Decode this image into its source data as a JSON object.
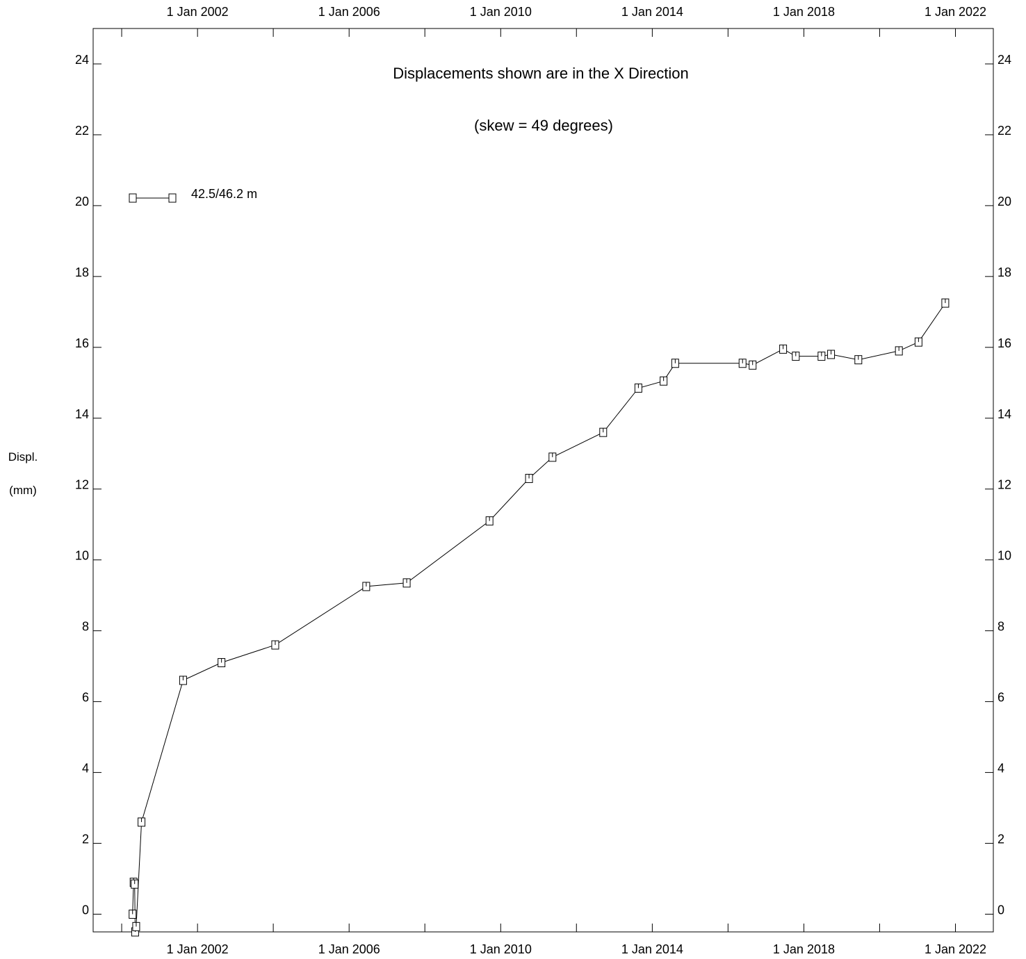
{
  "chart_data": {
    "type": "line",
    "title": "",
    "annotations": [
      "Displacements shown are in the  X Direction",
      "(skew = 49 degrees)"
    ],
    "ylabel_lines": [
      "Displ.",
      "(mm)"
    ],
    "xlabel": "",
    "xlim": [
      "1999-04-01",
      "2023-01-01"
    ],
    "ylim": [
      -0.5,
      25
    ],
    "x_tick_labels": [
      "1 Jan 2002",
      "1 Jan 2006",
      "1 Jan 2010",
      "1 Jan 2014",
      "1 Jan 2018",
      "1 Jan 2022"
    ],
    "x_ticks": [
      "2000-01-01",
      "2002-01-01",
      "2004-01-01",
      "2006-01-01",
      "2008-01-01",
      "2010-01-01",
      "2012-01-01",
      "2014-01-01",
      "2016-01-01",
      "2018-01-01",
      "2020-01-01",
      "2022-01-01"
    ],
    "y_ticks": [
      0,
      2,
      4,
      6,
      8,
      10,
      12,
      14,
      16,
      18,
      20,
      22,
      24
    ],
    "grid": false,
    "legend_position": "top-left",
    "series": [
      {
        "name": "42.5/46.2 m",
        "marker": "square",
        "color": "#000000",
        "points": [
          {
            "x": "2000-04-15",
            "y": 0.0
          },
          {
            "x": "2000-04-25",
            "y": 0.9
          },
          {
            "x": "2000-05-05",
            "y": 0.85
          },
          {
            "x": "2000-05-10",
            "y": -0.5
          },
          {
            "x": "2000-05-20",
            "y": -0.35
          },
          {
            "x": "2000-07-10",
            "y": 2.6
          },
          {
            "x": "2001-08-15",
            "y": 6.6
          },
          {
            "x": "2002-08-20",
            "y": 7.1
          },
          {
            "x": "2004-01-20",
            "y": 7.6
          },
          {
            "x": "2006-06-15",
            "y": 9.25
          },
          {
            "x": "2007-07-10",
            "y": 9.35
          },
          {
            "x": "2009-09-15",
            "y": 11.1
          },
          {
            "x": "2010-10-01",
            "y": 12.3
          },
          {
            "x": "2011-05-15",
            "y": 12.9
          },
          {
            "x": "2012-09-15",
            "y": 13.6
          },
          {
            "x": "2013-08-20",
            "y": 14.85
          },
          {
            "x": "2014-04-20",
            "y": 15.05
          },
          {
            "x": "2014-08-10",
            "y": 15.55
          },
          {
            "x": "2016-05-20",
            "y": 15.55
          },
          {
            "x": "2016-08-25",
            "y": 15.5
          },
          {
            "x": "2017-06-15",
            "y": 15.95
          },
          {
            "x": "2017-10-15",
            "y": 15.75
          },
          {
            "x": "2018-06-20",
            "y": 15.75
          },
          {
            "x": "2018-09-20",
            "y": 15.8
          },
          {
            "x": "2019-06-10",
            "y": 15.65
          },
          {
            "x": "2020-07-05",
            "y": 15.9
          },
          {
            "x": "2021-01-10",
            "y": 16.15
          },
          {
            "x": "2021-09-25",
            "y": 17.25
          }
        ]
      }
    ]
  }
}
